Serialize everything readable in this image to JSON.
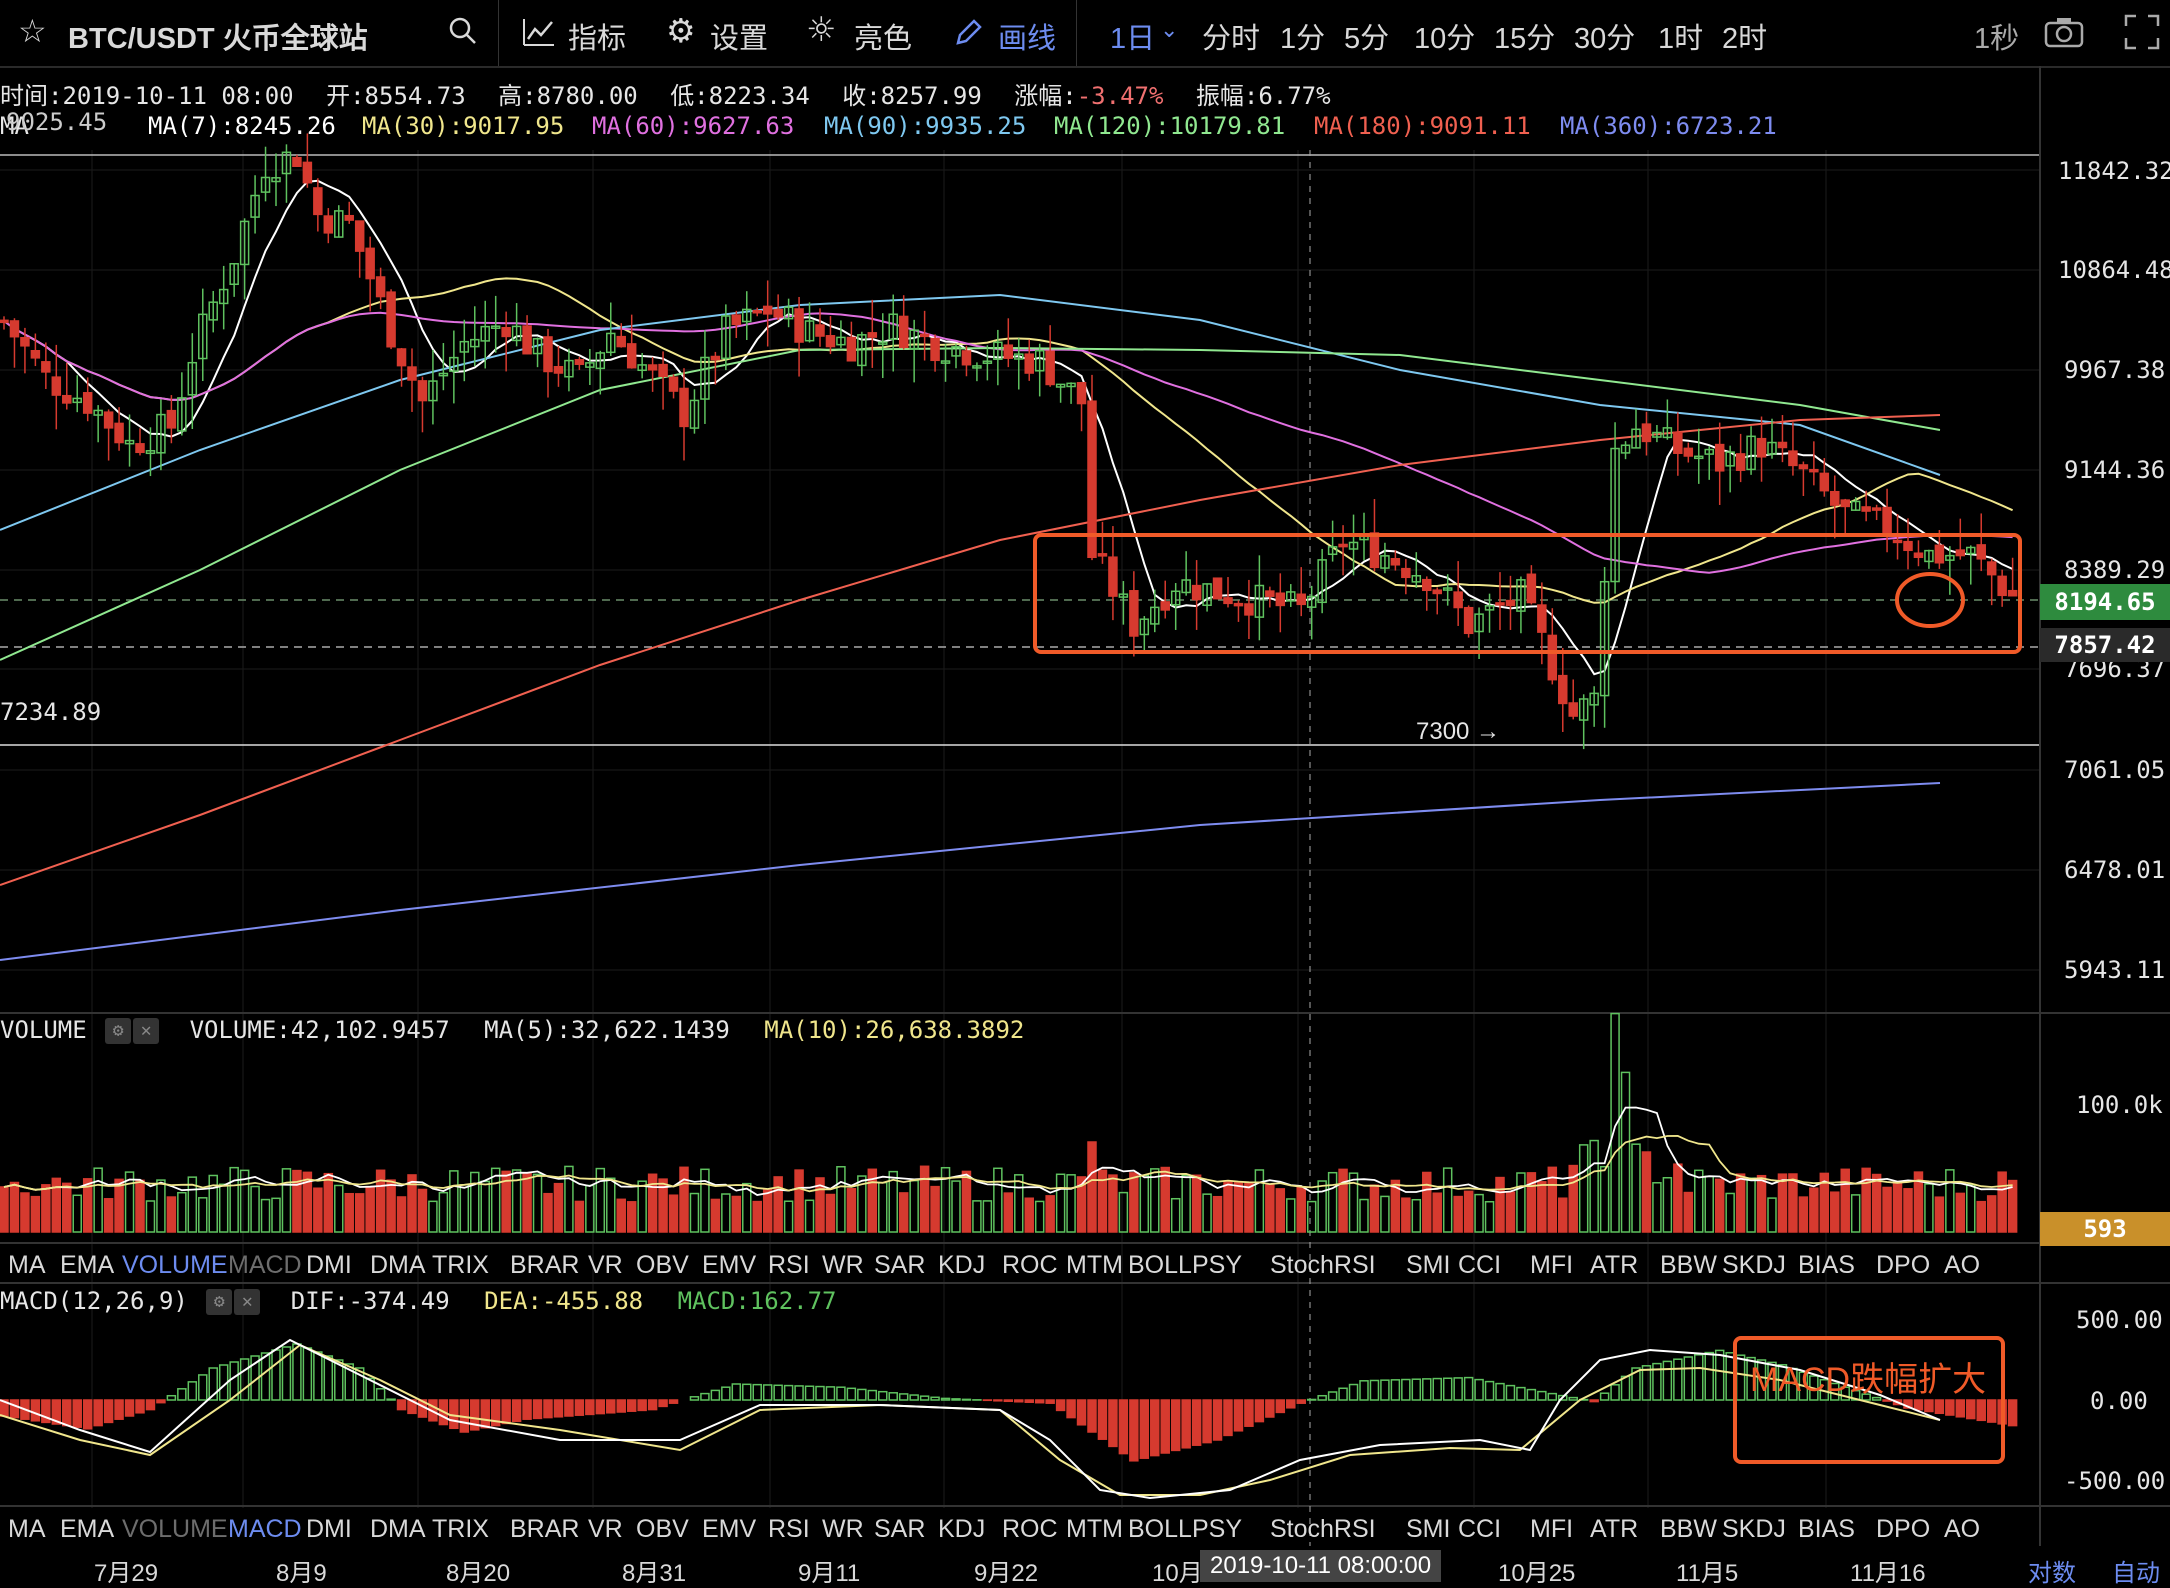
{
  "toolbar": {
    "symbol": "BTC/USDT 火币全球站",
    "indicators_label": "指标",
    "settings_label": "设置",
    "brightness_label": "亮色",
    "draw_label": "画线",
    "period_selected": "1日",
    "periods": [
      "分时",
      "1分",
      "5分",
      "10分",
      "15分",
      "30分",
      "1时",
      "2时"
    ],
    "refresh": "1秒"
  },
  "ohlc_line": {
    "time": "时间:2019-10-11 08:00",
    "open": "开:8554.73",
    "high": "高:8780.00",
    "low": "低:8223.34",
    "close": "收:8257.99",
    "change_label": "涨幅:",
    "change_value": "-3.47%",
    "amplitude": "振幅:6.77%"
  },
  "ma_line": {
    "ma_prefix": "MA",
    "overlap": "9025.45",
    "ma7": "MA(7):8245.26",
    "ma30": "MA(30):9017.95",
    "ma60": "MA(60):9627.63",
    "ma90": "MA(90):9935.25",
    "ma120": "MA(120):10179.81",
    "ma180": "MA(180):9091.11",
    "ma360": "MA(360):6723.21"
  },
  "colors": {
    "ma7": "#ffffff",
    "ma30": "#f0e68c",
    "ma60": "#e070e0",
    "ma90": "#7ec8f0",
    "ma120": "#90e890",
    "ma180": "#f06050",
    "ma360": "#7e8cf0",
    "up": "#5fc25f",
    "down": "#d63a2f",
    "annotation": "#f05a28",
    "accent": "#6d8cf0"
  },
  "price_axis": [
    "11842.32",
    "10864.48",
    "9967.38",
    "9144.36",
    "8389.29",
    "7696.37",
    "7061.05",
    "6478.01",
    "5943.11"
  ],
  "price_tags": {
    "current": "8194.65",
    "line": "7857.42"
  },
  "left_low_label": "7234.89",
  "low_annotation": "7300 →",
  "volume": {
    "title": "VOLUME",
    "value": "VOLUME:42,102.9457",
    "ma5": "MA(5):32,622.1439",
    "ma10": "MA(10):26,638.3892",
    "axis_label": "100.0k",
    "current_tag": "593"
  },
  "indicator_tabs": [
    "MA",
    "EMA",
    "VOLUME",
    "MACD",
    "DMI",
    "DMA",
    "TRIX",
    "BRAR",
    "VR",
    "OBV",
    "EMV",
    "RSI",
    "WR",
    "SAR",
    "KDJ",
    "ROC",
    "MTM",
    "BOLL",
    "PSY",
    "StochRSI",
    "SMI",
    "CCI",
    "MFI",
    "ATR",
    "BBW",
    "SKDJ",
    "BIAS",
    "DPO",
    "AO"
  ],
  "macd": {
    "title": "MACD(12,26,9)",
    "dif": "DIF:-374.49",
    "dea": "DEA:-455.88",
    "macd": "MACD:162.77",
    "axis": [
      "500.00",
      "0.00",
      "-500.00"
    ],
    "annotation": "MACD跌幅扩大"
  },
  "date_axis": [
    "7月29",
    "8月9",
    "8月20",
    "8月31",
    "9月11",
    "9月22",
    "10月",
    "10月25",
    "11月5",
    "11月16"
  ],
  "crosshair_date": "2019-10-11 08:00:00",
  "footer": {
    "log": "对数",
    "auto": "自动"
  }
}
